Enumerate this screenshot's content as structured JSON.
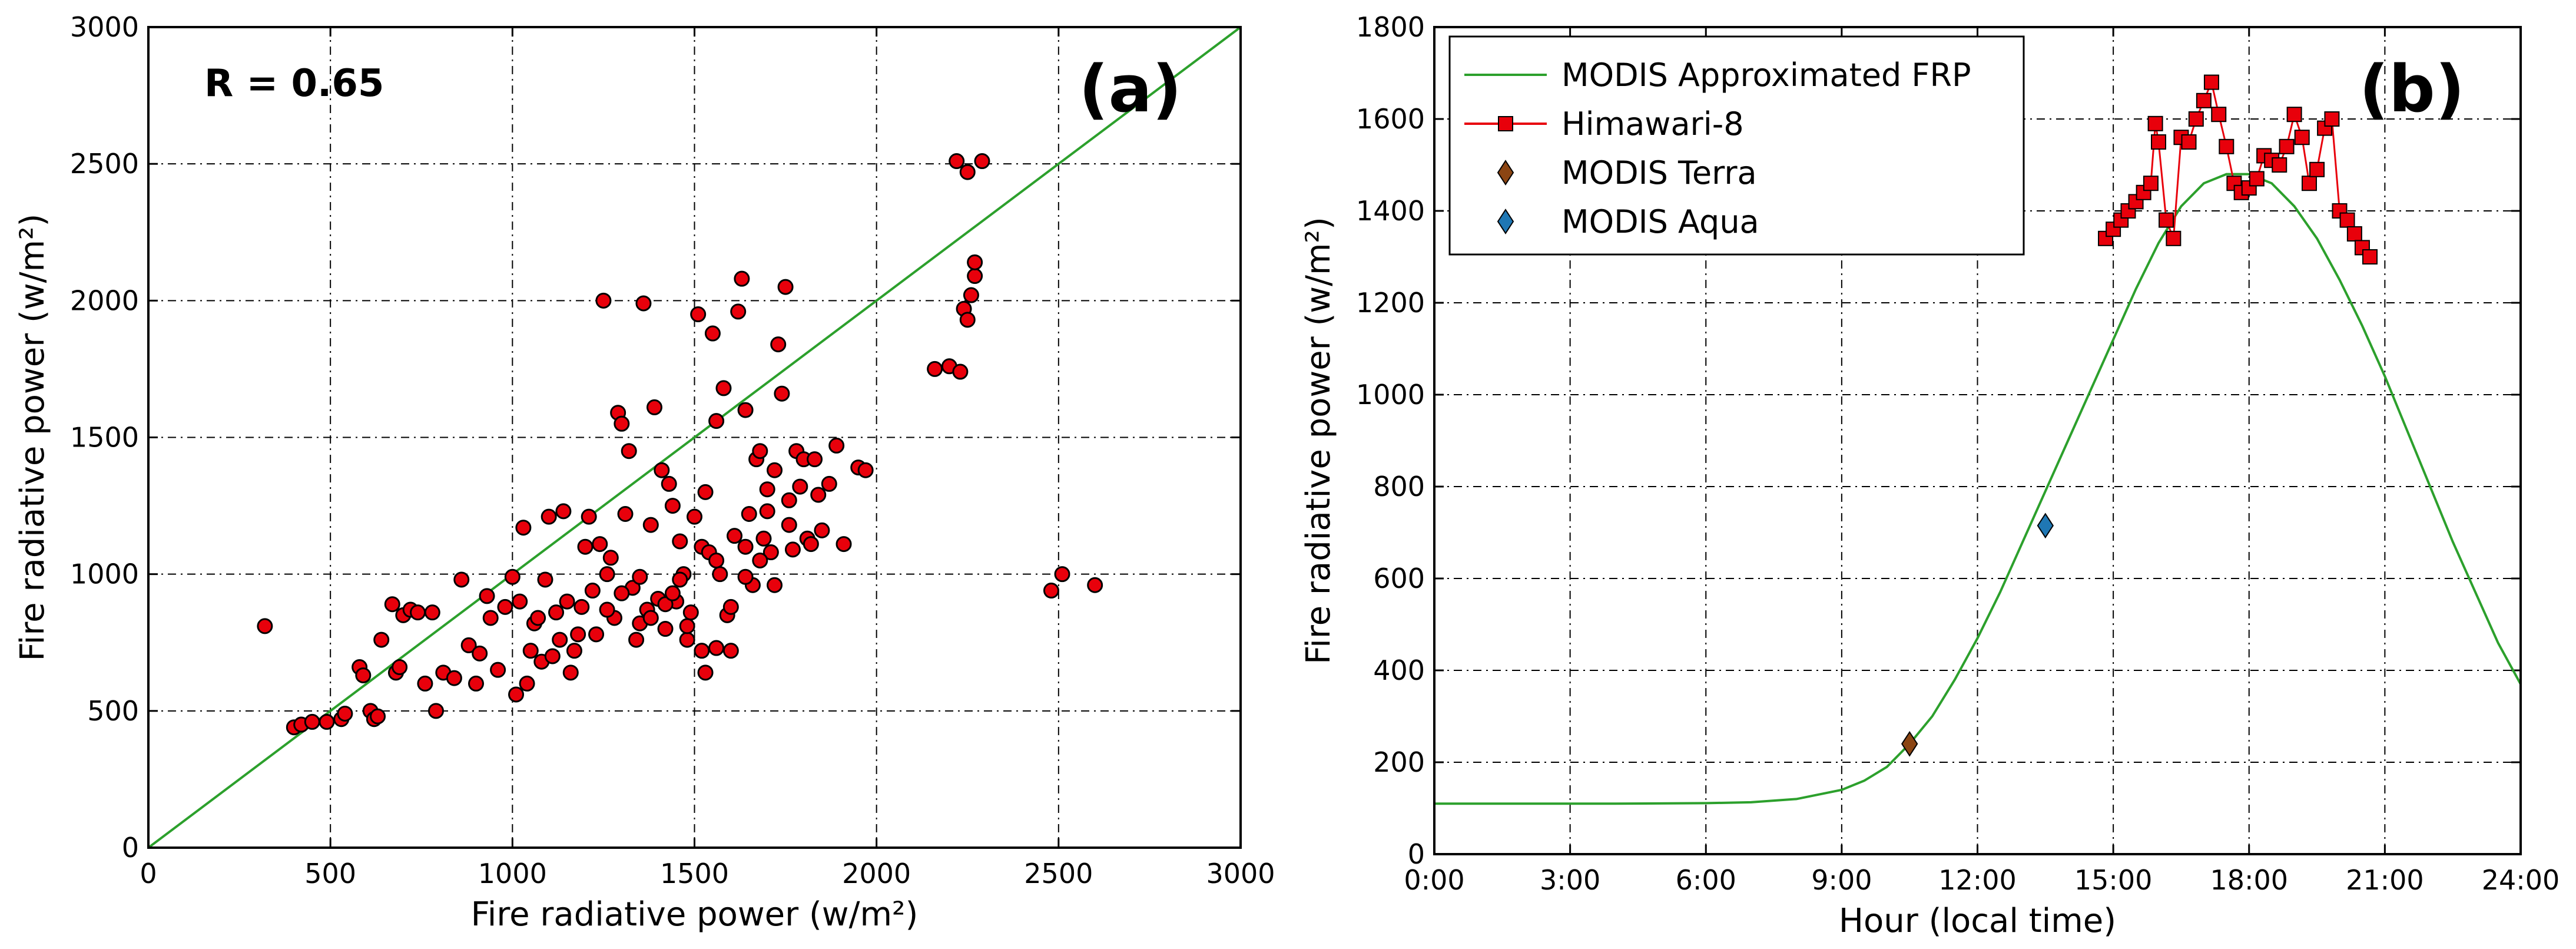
{
  "chart_data": [
    {
      "id": "a",
      "type": "scatter",
      "panel_label": "(a)",
      "annotation": "R = 0.65",
      "xlabel": "Fire radiative power (w/m²)",
      "ylabel": "Fire radiative power (w/m²)",
      "xlim": [
        0,
        3000
      ],
      "ylim": [
        0,
        3000
      ],
      "xticks": [
        0,
        500,
        1000,
        1500,
        2000,
        2500,
        3000
      ],
      "yticks": [
        0,
        500,
        1000,
        1500,
        2000,
        2500,
        3000
      ],
      "xtick_labels": [
        "0",
        "500",
        "1000",
        "1500",
        "2000",
        "2500",
        "3000"
      ],
      "ytick_labels": [
        "0",
        "500",
        "1000",
        "1500",
        "2000",
        "2500",
        "3000"
      ],
      "grid": true,
      "reference_line": {
        "x": [
          0,
          3000
        ],
        "y": [
          0,
          3000
        ],
        "color": "#2ca02c"
      },
      "marker_color": "#e8000b",
      "points": [
        [
          320,
          810
        ],
        [
          400,
          440
        ],
        [
          420,
          450
        ],
        [
          450,
          460
        ],
        [
          490,
          460
        ],
        [
          530,
          470
        ],
        [
          540,
          490
        ],
        [
          580,
          660
        ],
        [
          590,
          630
        ],
        [
          610,
          500
        ],
        [
          620,
          470
        ],
        [
          630,
          480
        ],
        [
          640,
          760
        ],
        [
          670,
          890
        ],
        [
          680,
          640
        ],
        [
          690,
          660
        ],
        [
          700,
          850
        ],
        [
          720,
          870
        ],
        [
          740,
          860
        ],
        [
          760,
          600
        ],
        [
          780,
          860
        ],
        [
          790,
          500
        ],
        [
          810,
          640
        ],
        [
          840,
          620
        ],
        [
          860,
          980
        ],
        [
          880,
          740
        ],
        [
          900,
          600
        ],
        [
          910,
          710
        ],
        [
          930,
          920
        ],
        [
          940,
          840
        ],
        [
          960,
          650
        ],
        [
          980,
          880
        ],
        [
          1000,
          990
        ],
        [
          1010,
          560
        ],
        [
          1020,
          900
        ],
        [
          1030,
          1170
        ],
        [
          1040,
          600
        ],
        [
          1050,
          720
        ],
        [
          1060,
          820
        ],
        [
          1070,
          840
        ],
        [
          1080,
          680
        ],
        [
          1090,
          980
        ],
        [
          1100,
          1210
        ],
        [
          1110,
          700
        ],
        [
          1120,
          860
        ],
        [
          1130,
          760
        ],
        [
          1140,
          1230
        ],
        [
          1150,
          900
        ],
        [
          1160,
          640
        ],
        [
          1170,
          720
        ],
        [
          1180,
          780
        ],
        [
          1190,
          880
        ],
        [
          1200,
          1100
        ],
        [
          1210,
          1210
        ],
        [
          1220,
          940
        ],
        [
          1230,
          780
        ],
        [
          1240,
          1110
        ],
        [
          1250,
          2000
        ],
        [
          1260,
          1000
        ],
        [
          1270,
          1060
        ],
        [
          1280,
          840
        ],
        [
          1290,
          1590
        ],
        [
          1300,
          1550
        ],
        [
          1310,
          1220
        ],
        [
          1320,
          1450
        ],
        [
          1330,
          950
        ],
        [
          1340,
          760
        ],
        [
          1350,
          820
        ],
        [
          1360,
          1990
        ],
        [
          1370,
          870
        ],
        [
          1380,
          1180
        ],
        [
          1390,
          1610
        ],
        [
          1400,
          910
        ],
        [
          1410,
          1380
        ],
        [
          1420,
          800
        ],
        [
          1430,
          1330
        ],
        [
          1440,
          1250
        ],
        [
          1450,
          900
        ],
        [
          1460,
          1120
        ],
        [
          1470,
          1000
        ],
        [
          1480,
          760
        ],
        [
          1490,
          860
        ],
        [
          1500,
          1210
        ],
        [
          1510,
          1950
        ],
        [
          1520,
          1100
        ],
        [
          1530,
          640
        ],
        [
          1540,
          1080
        ],
        [
          1550,
          1880
        ],
        [
          1560,
          1560
        ],
        [
          1570,
          1000
        ],
        [
          1580,
          1680
        ],
        [
          1590,
          850
        ],
        [
          1600,
          720
        ],
        [
          1610,
          1140
        ],
        [
          1620,
          1960
        ],
        [
          1630,
          2080
        ],
        [
          1640,
          1100
        ],
        [
          1650,
          1220
        ],
        [
          1660,
          960
        ],
        [
          1670,
          1420
        ],
        [
          1680,
          1450
        ],
        [
          1690,
          1130
        ],
        [
          1700,
          1310
        ],
        [
          1710,
          1080
        ],
        [
          1720,
          1380
        ],
        [
          1730,
          1840
        ],
        [
          1740,
          1660
        ],
        [
          1750,
          2050
        ],
        [
          1760,
          1180
        ],
        [
          1770,
          1090
        ],
        [
          1780,
          1450
        ],
        [
          1790,
          1320
        ],
        [
          1800,
          1420
        ],
        [
          1810,
          1130
        ],
        [
          1820,
          1110
        ],
        [
          1830,
          1420
        ],
        [
          1840,
          1290
        ],
        [
          1850,
          1160
        ],
        [
          1870,
          1330
        ],
        [
          1890,
          1470
        ],
        [
          1910,
          1110
        ],
        [
          1950,
          1390
        ],
        [
          1970,
          1380
        ],
        [
          1260,
          870
        ],
        [
          1300,
          930
        ],
        [
          1350,
          990
        ],
        [
          1380,
          840
        ],
        [
          1420,
          890
        ],
        [
          1440,
          930
        ],
        [
          1460,
          980
        ],
        [
          1480,
          810
        ],
        [
          1520,
          720
        ],
        [
          1560,
          730
        ],
        [
          1600,
          880
        ],
        [
          1640,
          990
        ],
        [
          1680,
          1050
        ],
        [
          1720,
          960
        ],
        [
          1560,
          1050
        ],
        [
          1530,
          1300
        ],
        [
          1640,
          1600
        ],
        [
          1700,
          1230
        ],
        [
          1760,
          1270
        ],
        [
          2160,
          1750
        ],
        [
          2200,
          1760
        ],
        [
          2230,
          1740
        ],
        [
          2240,
          1970
        ],
        [
          2250,
          1930
        ],
        [
          2260,
          2020
        ],
        [
          2270,
          2090
        ],
        [
          2270,
          2140
        ],
        [
          2220,
          2510
        ],
        [
          2250,
          2470
        ],
        [
          2290,
          2510
        ],
        [
          2480,
          940
        ],
        [
          2510,
          1000
        ],
        [
          2600,
          960
        ]
      ]
    },
    {
      "id": "b",
      "type": "line",
      "panel_label": "(b)",
      "xlabel": "Hour (local time)",
      "ylabel": "Fire radiative power (w/m²)",
      "xlim": [
        0,
        24
      ],
      "ylim": [
        0,
        1800
      ],
      "xticks": [
        0,
        3,
        6,
        9,
        12,
        15,
        18,
        21,
        24
      ],
      "yticks": [
        0,
        200,
        400,
        600,
        800,
        1000,
        1200,
        1400,
        1600,
        1800
      ],
      "xtick_labels": [
        "0:00",
        "3:00",
        "6:00",
        "9:00",
        "12:00",
        "15:00",
        "18:00",
        "21:00",
        "24:00"
      ],
      "ytick_labels": [
        "0",
        "200",
        "400",
        "600",
        "800",
        "1000",
        "1200",
        "1400",
        "1600",
        "1800"
      ],
      "grid": true,
      "legend_position": "top-left",
      "series": [
        {
          "name": "MODIS Approximated FRP",
          "kind": "line",
          "color": "#2ca02c",
          "x": [
            0,
            2,
            4,
            6,
            7,
            8,
            9,
            9.5,
            10,
            10.5,
            11,
            11.5,
            12,
            12.5,
            13,
            13.5,
            14,
            14.5,
            15,
            15.5,
            16,
            16.5,
            17,
            17.5,
            18,
            18.5,
            19,
            19.5,
            20,
            20.5,
            21,
            21.5,
            22,
            22.5,
            23,
            23.5,
            24
          ],
          "y": [
            110,
            110,
            110,
            111,
            113,
            120,
            140,
            160,
            190,
            240,
            300,
            380,
            470,
            570,
            680,
            790,
            900,
            1010,
            1120,
            1230,
            1330,
            1410,
            1460,
            1480,
            1480,
            1460,
            1410,
            1340,
            1250,
            1150,
            1040,
            920,
            800,
            680,
            570,
            460,
            370
          ]
        },
        {
          "name": "Himawari-8",
          "kind": "line-marker",
          "color": "#e8000b",
          "x": [
            14.83,
            15.0,
            15.17,
            15.33,
            15.5,
            15.67,
            15.83,
            15.93,
            16.0,
            16.17,
            16.33,
            16.5,
            16.67,
            16.83,
            17.0,
            17.17,
            17.33,
            17.5,
            17.67,
            17.83,
            18.0,
            18.17,
            18.33,
            18.5,
            18.67,
            18.83,
            19.0,
            19.17,
            19.33,
            19.5,
            19.67,
            19.83,
            20.0,
            20.17,
            20.33,
            20.5,
            20.67
          ],
          "y": [
            1340,
            1360,
            1380,
            1400,
            1420,
            1440,
            1460,
            1590,
            1550,
            1380,
            1340,
            1560,
            1550,
            1600,
            1640,
            1680,
            1610,
            1540,
            1460,
            1440,
            1450,
            1470,
            1520,
            1510,
            1500,
            1540,
            1610,
            1560,
            1460,
            1490,
            1580,
            1600,
            1400,
            1380,
            1350,
            1320,
            1300
          ]
        },
        {
          "name": "MODIS Terra",
          "kind": "marker",
          "marker": "diamond",
          "color": "#8b4513",
          "x": [
            10.5
          ],
          "y": [
            240
          ]
        },
        {
          "name": "MODIS Aqua",
          "kind": "marker",
          "marker": "diamond",
          "color": "#1f77b4",
          "x": [
            13.5
          ],
          "y": [
            715
          ]
        }
      ]
    }
  ]
}
